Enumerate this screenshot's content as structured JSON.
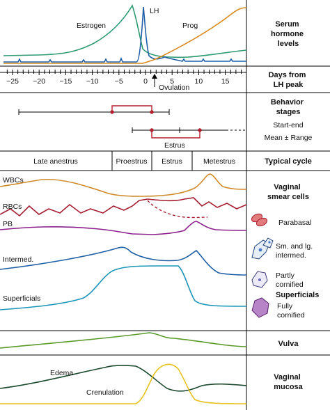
{
  "sections": {
    "hormones": {
      "title": "Serum hormone levels",
      "title_lines": [
        "Serum",
        "hormone",
        "levels"
      ],
      "labels": {
        "estrogen": "Estrogen",
        "lh": "LH",
        "prog": "Prog"
      },
      "colors": {
        "estrogen": "#2e9a72",
        "lh": "#1f5fa6",
        "prog": "#d88a1c"
      }
    },
    "days": {
      "title_lines": [
        "Days from",
        "LH peak"
      ],
      "ticks": [
        "−25",
        "−20",
        "−15",
        "−10",
        "−5",
        "0",
        "5",
        "10",
        "15"
      ],
      "tick_values": [
        -25,
        -20,
        -15,
        -10,
        -5,
        0,
        5,
        10,
        15
      ],
      "ovulation_label": "Ovulation"
    },
    "behavior": {
      "title": "Behavior stages",
      "legend_start_end": "Start-end",
      "legend_mean_range": "Mean ± Range",
      "estrus_label": "Estrus",
      "accent": "#b31e2e"
    },
    "cycle": {
      "title": "Typical cycle",
      "stages": [
        "Late anestrus",
        "Proestrus",
        "Estrus",
        "Metestrus"
      ]
    },
    "smear": {
      "title_lines": [
        "Vaginal",
        "smear cells"
      ],
      "curve_labels": {
        "wbc": "WBCs",
        "rbc": "RBCs",
        "pb": "PB",
        "intermed": "Intermed.",
        "superficials": "Superficials"
      },
      "colors": {
        "wbc": "#d08a2a",
        "rbc": "#a51c30",
        "pb": "#8c1f8c",
        "intermed": "#1f5fa6",
        "superficials": "#1a95b8"
      },
      "legend": {
        "parabasal": "Parabasal",
        "intermed": "Sm. and lg. intermed.",
        "intermed_lines": [
          "Sm. and lg.",
          "intermed."
        ],
        "partly": "Partly cornified",
        "partly_lines": [
          "Partly",
          "cornified"
        ],
        "superficials_heading": "Superficials",
        "fully": "Fully cornified",
        "fully_lines": [
          "Fully",
          "cornified"
        ]
      }
    },
    "vulva": {
      "title": "Vulva",
      "color": "#5a9a2a"
    },
    "mucosa": {
      "title_lines": [
        "Vaginal",
        "mucosa"
      ],
      "labels": {
        "edema": "Edema",
        "crenulation": "Crenulation"
      },
      "colors": {
        "edema": "#1d4a2e",
        "crenulation": "#e6c21c"
      }
    }
  }
}
